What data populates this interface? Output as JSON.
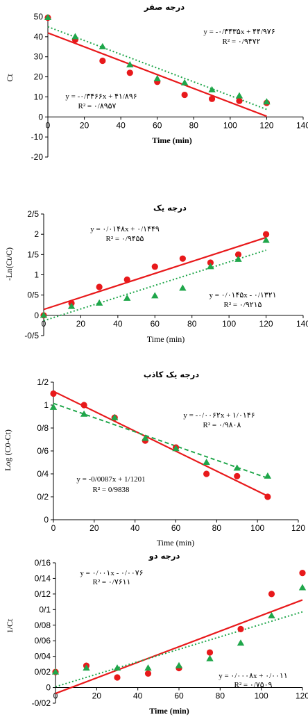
{
  "chart_data": [
    {
      "type": "scatter",
      "title": "درجه صفر",
      "xlabel": "Time (min)",
      "ylabel": "Ct",
      "xlim": [
        0,
        140
      ],
      "ylim": [
        -20,
        50
      ],
      "xticks": [
        "0",
        "20",
        "40",
        "60",
        "80",
        "100",
        "120",
        "140"
      ],
      "yticks": [
        "-20",
        "-10",
        "0",
        "10",
        "20",
        "30",
        "40",
        "50"
      ],
      "series": [
        {
          "color": "#e8191b",
          "marker": "circle",
          "trend": "solid",
          "x": [
            0,
            15,
            30,
            45,
            60,
            75,
            90,
            105,
            120
          ],
          "y": [
            49.5,
            38.5,
            28,
            22,
            17.5,
            11,
            9,
            8,
            7
          ]
        },
        {
          "color": "#1fa64a",
          "marker": "triangle",
          "trend": "dotted",
          "x": [
            0,
            15,
            30,
            45,
            60,
            75,
            90,
            105,
            120
          ],
          "y": [
            49.5,
            40,
            35,
            26,
            19,
            17,
            13.5,
            10.5,
            7.5
          ]
        }
      ],
      "trendlines": [
        {
          "slope": -0.3466,
          "intercept": 41.896,
          "color": "#e8191b",
          "style": "solid",
          "x": [
            0,
            120
          ]
        },
        {
          "slope": -0.3435,
          "intercept": 44.976,
          "color": "#1fa64a",
          "style": "dotted",
          "x": [
            0,
            120
          ]
        }
      ],
      "equations": [
        {
          "eq": "y = -۰/۳۴۳۵x + ۴۴/۹۷۶",
          "r2": "R² = ۰/۹۴۷۲"
        },
        {
          "eq": "y = -۰/۳۴۶۶x + ۴۱/۸۹۶",
          "r2": "R² = ۰/۸۹۵۷"
        }
      ]
    },
    {
      "type": "scatter",
      "title": "درجه یک",
      "xlabel": "Time (min)",
      "ylabel": "-Ln(Ct/C)",
      "xlim": [
        0,
        140
      ],
      "ylim": [
        -0.5,
        2.5
      ],
      "xticks": [
        "0",
        "20",
        "40",
        "60",
        "80",
        "100",
        "120",
        "140"
      ],
      "yticks": [
        "-0/5",
        "0",
        "0/5",
        "1",
        "1/5",
        "2",
        "2/5"
      ],
      "series": [
        {
          "color": "#e8191b",
          "marker": "circle",
          "trend": "solid",
          "x": [
            0,
            15,
            30,
            45,
            60,
            75,
            90,
            105,
            120
          ],
          "y": [
            0,
            0.3,
            0.7,
            0.88,
            1.2,
            1.4,
            1.3,
            1.5,
            2.0
          ]
        },
        {
          "color": "#1fa64a",
          "marker": "triangle",
          "trend": "dotted",
          "x": [
            0,
            15,
            30,
            45,
            60,
            75,
            90,
            105,
            120
          ],
          "y": [
            0,
            0.22,
            0.3,
            0.42,
            0.48,
            0.67,
            1.2,
            1.38,
            1.85
          ]
        }
      ],
      "trendlines": [
        {
          "slope": 0.0148,
          "intercept": 0.1449,
          "color": "#e8191b",
          "style": "solid",
          "x": [
            0,
            120
          ]
        },
        {
          "slope": 0.0145,
          "intercept": -0.1321,
          "color": "#1fa64a",
          "style": "dotted",
          "x": [
            0,
            120
          ]
        }
      ],
      "equations": [
        {
          "eq": "y = ۰/۰۱۴۸x + ۰/۱۴۴۹",
          "r2": "R² = ۰/۹۴۵۵"
        },
        {
          "eq": "y = ۰/۰۱۴۵x - ۰/۱۳۲۱",
          "r2": "R² = ۰/۹۲۱۵"
        }
      ]
    },
    {
      "type": "scatter",
      "title": "درجه یک کاذب",
      "xlabel": "Time (min)",
      "ylabel": "Log (C0-Ct)",
      "xlim": [
        0,
        120
      ],
      "ylim": [
        0,
        1.2
      ],
      "xticks": [
        "0",
        "20",
        "40",
        "60",
        "80",
        "100",
        "120"
      ],
      "yticks": [
        "0",
        "0/2",
        "0/4",
        "0/6",
        "0/8",
        "1",
        "1/2"
      ],
      "series": [
        {
          "color": "#e8191b",
          "marker": "circle",
          "trend": "solid",
          "x": [
            0,
            15,
            30,
            45,
            60,
            75,
            90,
            105
          ],
          "y": [
            1.1,
            1.0,
            0.89,
            0.69,
            0.63,
            0.4,
            0.38,
            0.2
          ]
        },
        {
          "color": "#1fa64a",
          "marker": "triangle",
          "trend": "dashed",
          "x": [
            0,
            15,
            30,
            45,
            60,
            75,
            90,
            105
          ],
          "y": [
            0.98,
            0.92,
            0.89,
            0.71,
            0.62,
            0.5,
            0.45,
            0.38
          ]
        }
      ],
      "trendlines": [
        {
          "slope": -0.0087,
          "intercept": 1.1201,
          "color": "#e8191b",
          "style": "solid",
          "x": [
            0,
            105
          ]
        },
        {
          "slope": -0.0062,
          "intercept": 1.0146,
          "color": "#1fa64a",
          "style": "dashed",
          "x": [
            0,
            105
          ]
        }
      ],
      "equations": [
        {
          "eq": "y = -۰/۰۰۶۲x + ۱/۰۱۴۶",
          "r2": "R² = ۰/۹۸۰۸"
        },
        {
          "eq": "y = -0/0087x + 1/1201",
          "r2": "R² = 0/9838"
        }
      ]
    },
    {
      "type": "scatter",
      "title": "درجه دو",
      "xlabel": "Time (min)",
      "ylabel": "1/Ct",
      "xlim": [
        0,
        120
      ],
      "ylim": [
        -0.02,
        0.16
      ],
      "xticks": [
        "0",
        "20",
        "40",
        "60",
        "80",
        "100",
        "120"
      ],
      "yticks": [
        "-0/02",
        "0",
        "0/02",
        "0/04",
        "0/06",
        "0/08",
        "0/1",
        "0/12",
        "0/14",
        "0/16"
      ],
      "series": [
        {
          "color": "#e8191b",
          "marker": "circle",
          "trend": "solid",
          "x": [
            0,
            15,
            30,
            45,
            60,
            75,
            90,
            105,
            120
          ],
          "y": [
            0.02,
            0.028,
            0.013,
            0.018,
            0.025,
            0.045,
            0.075,
            0.12,
            0.147
          ]
        },
        {
          "color": "#1fa64a",
          "marker": "triangle",
          "trend": "dotted",
          "x": [
            0,
            15,
            30,
            45,
            60,
            75,
            90,
            105,
            120
          ],
          "y": [
            0.02,
            0.025,
            0.025,
            0.025,
            0.028,
            0.037,
            0.057,
            0.092,
            0.128
          ]
        }
      ],
      "trendlines": [
        {
          "slope": 0.001,
          "intercept": -0.0076,
          "color": "#e8191b",
          "style": "solid",
          "x": [
            0,
            120
          ]
        },
        {
          "slope": 0.0008,
          "intercept": 0.0011,
          "color": "#1fa64a",
          "style": "dotted",
          "x": [
            0,
            120
          ]
        }
      ],
      "equations": [
        {
          "eq": "y = ۰/۰۰۱x - ۰/۰۰۷۶",
          "r2": "R² = ۰/۷۶۱۱"
        },
        {
          "eq": "y = ۰/۰۰۰۸x + ۰/۰۰۱۱",
          "r2": "R² = ۰/۷۵۰۹"
        }
      ]
    }
  ]
}
